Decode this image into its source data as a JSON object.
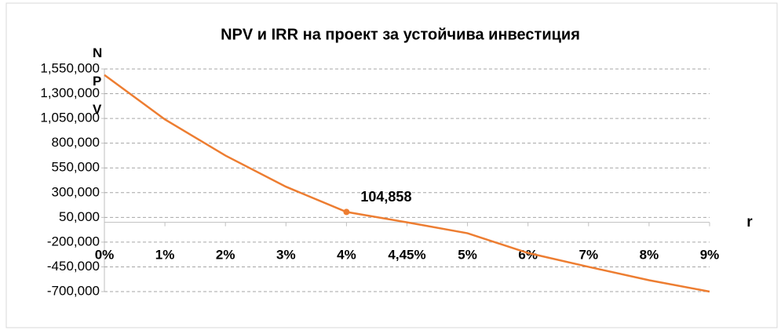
{
  "chart_data": {
    "type": "line",
    "title": "NPV и IRR на проект за устойчива инвестиция",
    "ylabel": "NPV",
    "xlabel": "r",
    "categories": [
      "0%",
      "1%",
      "2%",
      "3%",
      "4%",
      "4,45%",
      "5%",
      "6%",
      "7%",
      "8%",
      "9%"
    ],
    "series": [
      {
        "name": "NPV",
        "color": "#ed7d31",
        "values": [
          1490000,
          1040000,
          675000,
          360000,
          104858,
          0,
          -110000,
          -310000,
          -450000,
          -585000,
          -700000
        ],
        "value_labels": [
          null,
          null,
          null,
          null,
          "104,858",
          null,
          null,
          null,
          null,
          null,
          null
        ]
      }
    ],
    "ylim": [
      -700000,
      1550000
    ],
    "yticks": [
      {
        "value": -700000,
        "label": "-700,000"
      },
      {
        "value": -450000,
        "label": "-450,000"
      },
      {
        "value": -200000,
        "label": "-200,000"
      },
      {
        "value": 50000,
        "label": "50,000"
      },
      {
        "value": 300000,
        "label": "300,000"
      },
      {
        "value": 550000,
        "label": "550,000"
      },
      {
        "value": 800000,
        "label": "800,000"
      },
      {
        "value": 1050000,
        "label": "1,050,000"
      },
      {
        "value": 1300000,
        "label": "1,300,000"
      },
      {
        "value": 1550000,
        "label": "1,550,000"
      }
    ],
    "grid": true
  }
}
